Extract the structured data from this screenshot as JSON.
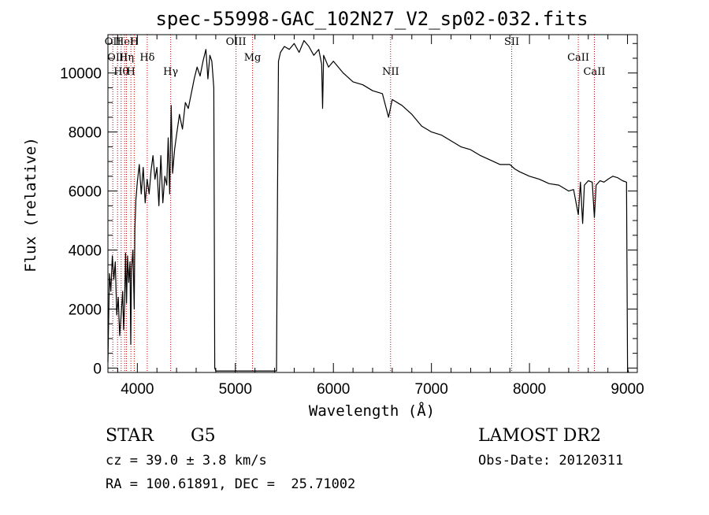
{
  "chart_data": {
    "type": "line",
    "title": "spec-55998-GAC_102N27_V2_sp02-032.fits",
    "xlabel": "Wavelength (Å)",
    "ylabel": "Flux (relative)",
    "xlim": [
      3700,
      9100
    ],
    "ylim": [
      -150,
      11300
    ],
    "x_ticks": [
      4000,
      5000,
      6000,
      7000,
      8000,
      9000
    ],
    "y_ticks": [
      0,
      2000,
      4000,
      6000,
      8000,
      10000
    ],
    "grid": false,
    "line_color": "#000000",
    "marker_color": "#cc0000",
    "series": [
      {
        "x": [
          3700,
          3715,
          3730,
          3745,
          3760,
          3775,
          3790,
          3805,
          3820,
          3835,
          3850,
          3860,
          3870,
          3880,
          3890,
          3900,
          3912,
          3925,
          3933,
          3940,
          3955,
          3968,
          3975,
          3985,
          4000,
          4020,
          4040,
          4060,
          4080,
          4100,
          4120,
          4140,
          4160,
          4180,
          4200,
          4220,
          4240,
          4260,
          4280,
          4300,
          4315,
          4330,
          4345,
          4360,
          4380,
          4400,
          4430,
          4460,
          4490,
          4520,
          4550,
          4580,
          4610,
          4640,
          4670,
          4700,
          4720,
          4740,
          4760,
          4780,
          4790,
          4800,
          5420,
          5430,
          5440,
          5460,
          5500,
          5550,
          5600,
          5650,
          5700,
          5750,
          5800,
          5850,
          5880,
          5890,
          5900,
          5950,
          6000,
          6100,
          6200,
          6300,
          6400,
          6500,
          6562,
          6600,
          6700,
          6800,
          6900,
          7000,
          7100,
          7200,
          7300,
          7400,
          7500,
          7600,
          7700,
          7800,
          7850,
          7900,
          8000,
          8100,
          8200,
          8300,
          8400,
          8450,
          8498,
          8520,
          8542,
          8560,
          8600,
          8640,
          8662,
          8680,
          8720,
          8760,
          8800,
          8850,
          8900,
          8950,
          8990,
          9000,
          9010
        ],
        "values": [
          200,
          3200,
          2600,
          3800,
          3000,
          3600,
          1800,
          2400,
          1100,
          1800,
          2600,
          1300,
          2200,
          3900,
          2200,
          3800,
          2900,
          3600,
          800,
          3300,
          4000,
          2000,
          4700,
          5700,
          6300,
          6900,
          5900,
          6800,
          5600,
          6400,
          5900,
          6700,
          7200,
          6400,
          6800,
          5500,
          7200,
          5600,
          6500,
          6200,
          7800,
          5900,
          8900,
          6600,
          7400,
          7900,
          8600,
          8100,
          9000,
          8800,
          9300,
          9800,
          10200,
          9900,
          10400,
          10800,
          9800,
          10600,
          10400,
          9500,
          0,
          -100,
          -100,
          6000,
          10400,
          10700,
          10900,
          10800,
          11000,
          10700,
          11100,
          10900,
          10600,
          10800,
          10300,
          8800,
          10600,
          10200,
          10400,
          10000,
          9700,
          9600,
          9400,
          9300,
          8500,
          9100,
          8900,
          8600,
          8200,
          8000,
          7900,
          7700,
          7500,
          7400,
          7200,
          7050,
          6900,
          6900,
          6750,
          6650,
          6500,
          6400,
          6250,
          6200,
          6000,
          6050,
          5200,
          6300,
          4900,
          6200,
          6350,
          6300,
          5100,
          6200,
          6350,
          6300,
          6400,
          6500,
          6450,
          6350,
          6300,
          0,
          -150
        ]
      }
    ],
    "lines": [
      {
        "x": 3750,
        "label": "OII"
      },
      {
        "x": 3798,
        "label": "OIII"
      },
      {
        "x": 3835,
        "label": "Hθ"
      },
      {
        "x": 3870,
        "label": "HeI"
      },
      {
        "x": 3889,
        "label": "Hη"
      },
      {
        "x": 3934,
        "label": "H"
      },
      {
        "x": 3968,
        "label": "H"
      },
      {
        "x": 4101,
        "label": "Hδ"
      },
      {
        "x": 4340,
        "label": "Hγ"
      },
      {
        "x": 5007,
        "label": "OIII"
      },
      {
        "x": 5175,
        "label": "Mg"
      },
      {
        "x": 6583,
        "label": "NII"
      },
      {
        "x": 7819,
        "label": "SII"
      },
      {
        "x": 8498,
        "label": "CaII"
      },
      {
        "x": 8662,
        "label": "CaII"
      }
    ]
  },
  "info": {
    "object_type": "STAR",
    "subclass": "G5",
    "survey": "LAMOST DR2",
    "cz": "cz = 39.0 ± 3.8 km/s",
    "obs_date": "Obs-Date: 20120311",
    "coords": "RA = 100.61891, DEC =  25.71002"
  }
}
